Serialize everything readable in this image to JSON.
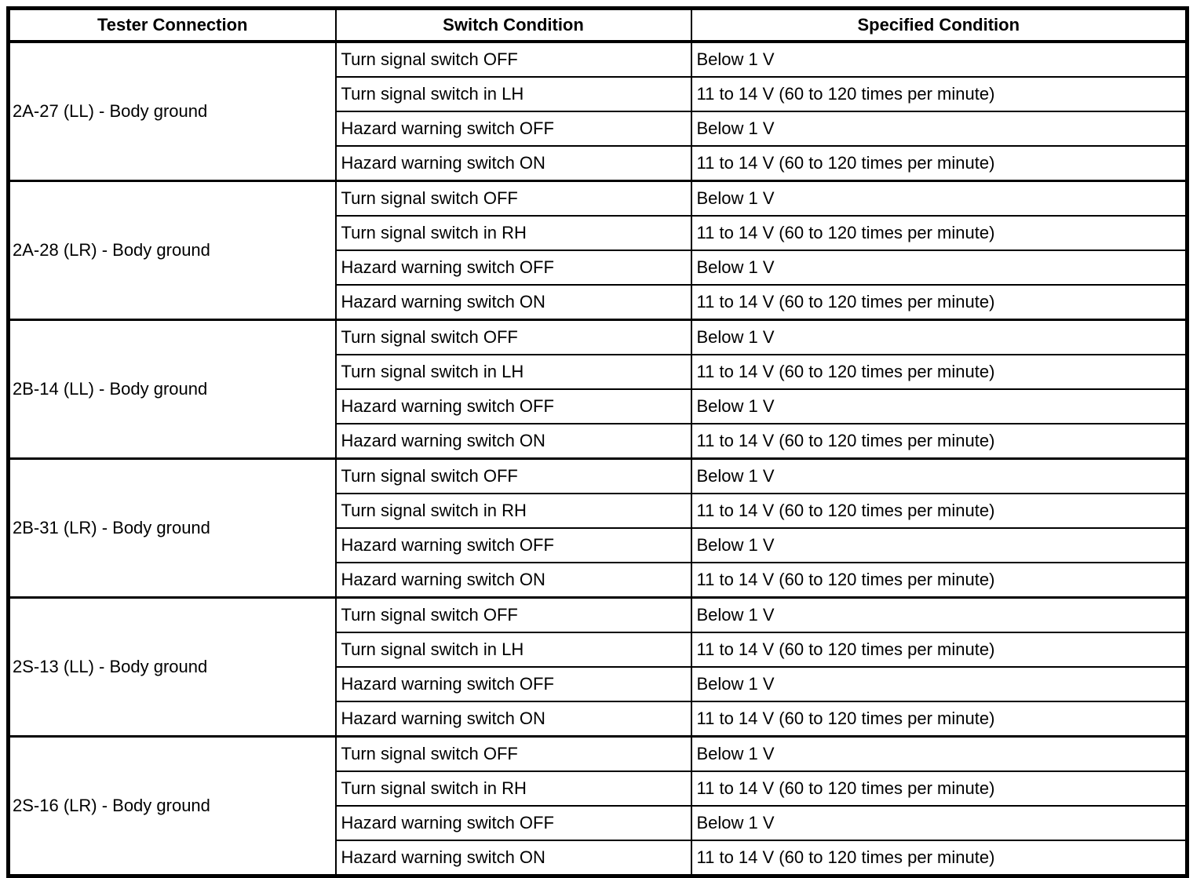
{
  "table": {
    "headers": [
      "Tester Connection",
      "Switch Condition",
      "Specified Condition"
    ],
    "groups": [
      {
        "tester_connection": "2A-27 (LL) - Body ground",
        "rows": [
          {
            "switch_condition": "Turn signal switch OFF",
            "specified_condition": "Below 1 V"
          },
          {
            "switch_condition": "Turn signal switch in LH",
            "specified_condition": "11 to 14 V (60 to 120 times per minute)"
          },
          {
            "switch_condition": "Hazard warning switch OFF",
            "specified_condition": "Below 1 V"
          },
          {
            "switch_condition": "Hazard warning switch ON",
            "specified_condition": "11 to 14 V (60 to 120 times per minute)"
          }
        ]
      },
      {
        "tester_connection": "2A-28 (LR) - Body ground",
        "rows": [
          {
            "switch_condition": "Turn signal switch OFF",
            "specified_condition": "Below 1 V"
          },
          {
            "switch_condition": "Turn signal switch in RH",
            "specified_condition": "11 to 14 V (60 to 120 times per minute)"
          },
          {
            "switch_condition": "Hazard warning switch OFF",
            "specified_condition": "Below 1 V"
          },
          {
            "switch_condition": "Hazard warning switch ON",
            "specified_condition": "11 to 14 V (60 to 120 times per minute)"
          }
        ]
      },
      {
        "tester_connection": "2B-14 (LL) - Body ground",
        "rows": [
          {
            "switch_condition": "Turn signal switch OFF",
            "specified_condition": "Below 1 V"
          },
          {
            "switch_condition": "Turn signal switch in LH",
            "specified_condition": "11 to 14 V (60 to 120 times per minute)"
          },
          {
            "switch_condition": "Hazard warning switch OFF",
            "specified_condition": "Below 1 V"
          },
          {
            "switch_condition": "Hazard warning switch ON",
            "specified_condition": "11 to 14 V (60 to 120 times per minute)"
          }
        ]
      },
      {
        "tester_connection": "2B-31 (LR) - Body ground",
        "rows": [
          {
            "switch_condition": "Turn signal switch OFF",
            "specified_condition": "Below 1 V"
          },
          {
            "switch_condition": "Turn signal switch in RH",
            "specified_condition": "11 to 14 V (60 to 120 times per minute)"
          },
          {
            "switch_condition": "Hazard warning switch OFF",
            "specified_condition": "Below 1 V"
          },
          {
            "switch_condition": "Hazard warning switch ON",
            "specified_condition": "11 to 14 V (60 to 120 times per minute)"
          }
        ]
      },
      {
        "tester_connection": "2S-13 (LL) - Body ground",
        "rows": [
          {
            "switch_condition": "Turn signal switch OFF",
            "specified_condition": "Below 1 V"
          },
          {
            "switch_condition": "Turn signal switch in LH",
            "specified_condition": "11 to 14 V (60 to 120 times per minute)"
          },
          {
            "switch_condition": "Hazard warning switch OFF",
            "specified_condition": "Below 1 V"
          },
          {
            "switch_condition": "Hazard warning switch ON",
            "specified_condition": "11 to 14 V (60 to 120 times per minute)"
          }
        ]
      },
      {
        "tester_connection": "2S-16 (LR) - Body ground",
        "rows": [
          {
            "switch_condition": "Turn signal switch OFF",
            "specified_condition": "Below 1 V"
          },
          {
            "switch_condition": "Turn signal switch in RH",
            "specified_condition": "11 to 14 V (60 to 120 times per minute)"
          },
          {
            "switch_condition": "Hazard warning switch OFF",
            "specified_condition": "Below 1 V"
          },
          {
            "switch_condition": "Hazard warning switch ON",
            "specified_condition": "11 to 14 V (60 to 120 times per minute)"
          }
        ]
      }
    ]
  }
}
